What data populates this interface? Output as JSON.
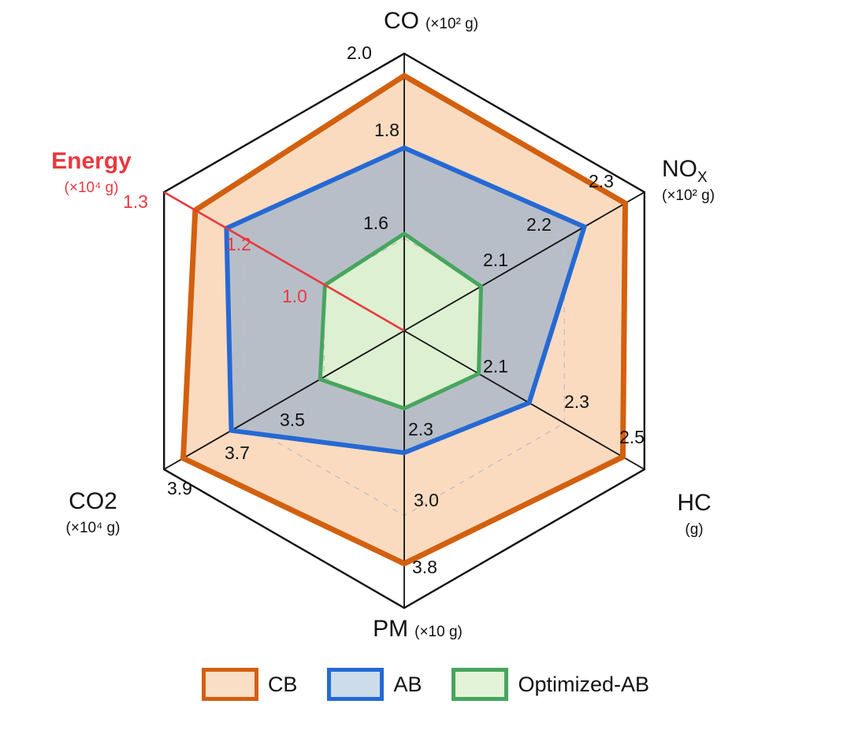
{
  "chart_data": {
    "type": "radar",
    "title": "",
    "axes": [
      {
        "label": "CO",
        "unit": "(×10² g)",
        "ticks": [
          "1.6",
          "1.8",
          "2.0"
        ]
      },
      {
        "label": "NO",
        "sub": "X",
        "unit": "(×10² g)",
        "ticks": [
          "2.1",
          "2.2",
          "2.3"
        ]
      },
      {
        "label": "HC",
        "unit": "(g)",
        "ticks": [
          "2.1",
          "2.3",
          "2.5"
        ]
      },
      {
        "label": "PM",
        "unit": "(×10 g)",
        "ticks": [
          "2.3",
          "3.0",
          "3.8"
        ]
      },
      {
        "label": "CO2",
        "unit": "(×10⁴ g)",
        "ticks": [
          "3.5",
          "3.7",
          "3.9"
        ]
      },
      {
        "label": "Energy",
        "unit": "(×10⁴ g)",
        "ticks": [
          "1.0",
          "1.2",
          "1.3"
        ],
        "tick_color": "#e8393f"
      }
    ],
    "ring_fractions": [
      0.3333,
      0.6667
    ],
    "energy_axis_color": "#e8393f",
    "grid_color": "#c0c0c0",
    "axis_line_color": "#111111",
    "series": [
      {
        "name": "CB",
        "stroke": "#d2600f",
        "fill": "rgba(245,170,105,0.42)",
        "legend_fill": "#fadec5",
        "stroke_width": 7,
        "values": {
          "CO": 1.95,
          "NOx": 2.28,
          "HC": 2.45,
          "PM": 3.6,
          "CO2": 3.85,
          "Energy": 1.26
        },
        "fractions": [
          0.92,
          0.92,
          0.91,
          0.84,
          0.92,
          0.87
        ]
      },
      {
        "name": "AB",
        "stroke": "#2569d4",
        "fill": "rgba(140,170,205,0.6)",
        "legend_fill": "#ccdceb",
        "stroke_width": 6,
        "values": {
          "CO": 1.78,
          "NOx": 2.23,
          "HC": 2.21,
          "PM": 2.55,
          "CO2": 3.72,
          "Energy": 1.21
        },
        "fractions": [
          0.66,
          0.75,
          0.52,
          0.44,
          0.72,
          0.74
        ]
      },
      {
        "name": "Optimized-AB",
        "stroke": "#47a55e",
        "fill": "rgba(225,245,210,0.9)",
        "legend_fill": "#e3f3d8",
        "stroke_width": 5,
        "values": {
          "CO": 1.61,
          "NOx": 2.1,
          "HC": 2.08,
          "PM": 2.2,
          "CO2": 3.51,
          "Energy": 1.0
        },
        "fractions": [
          0.35,
          0.32,
          0.31,
          0.28,
          0.35,
          0.33
        ]
      }
    ]
  },
  "legend": {
    "items": [
      "CB",
      "AB",
      "Optimized-AB"
    ]
  }
}
